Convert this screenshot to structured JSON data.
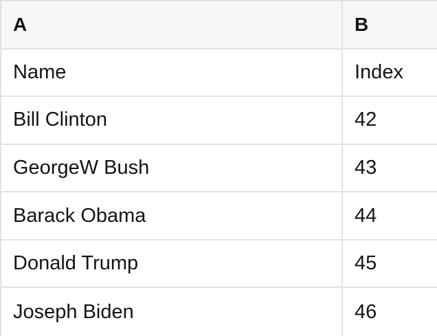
{
  "table": {
    "columns": [
      {
        "label": "A"
      },
      {
        "label": "B"
      }
    ],
    "rows": [
      {
        "cells": [
          "Name",
          "Index"
        ]
      },
      {
        "cells": [
          "Bill Clinton",
          "42"
        ]
      },
      {
        "cells": [
          "GeorgeW Bush",
          "43"
        ]
      },
      {
        "cells": [
          "Barack Obama",
          "44"
        ]
      },
      {
        "cells": [
          "Donald Trump",
          "45"
        ]
      },
      {
        "cells": [
          "Joseph Biden",
          "46"
        ]
      }
    ]
  },
  "colors": {
    "header_bg": "#f7f7f7",
    "border": "#e2e2e2",
    "row_bg": "#ffffff",
    "text": "#141414"
  }
}
